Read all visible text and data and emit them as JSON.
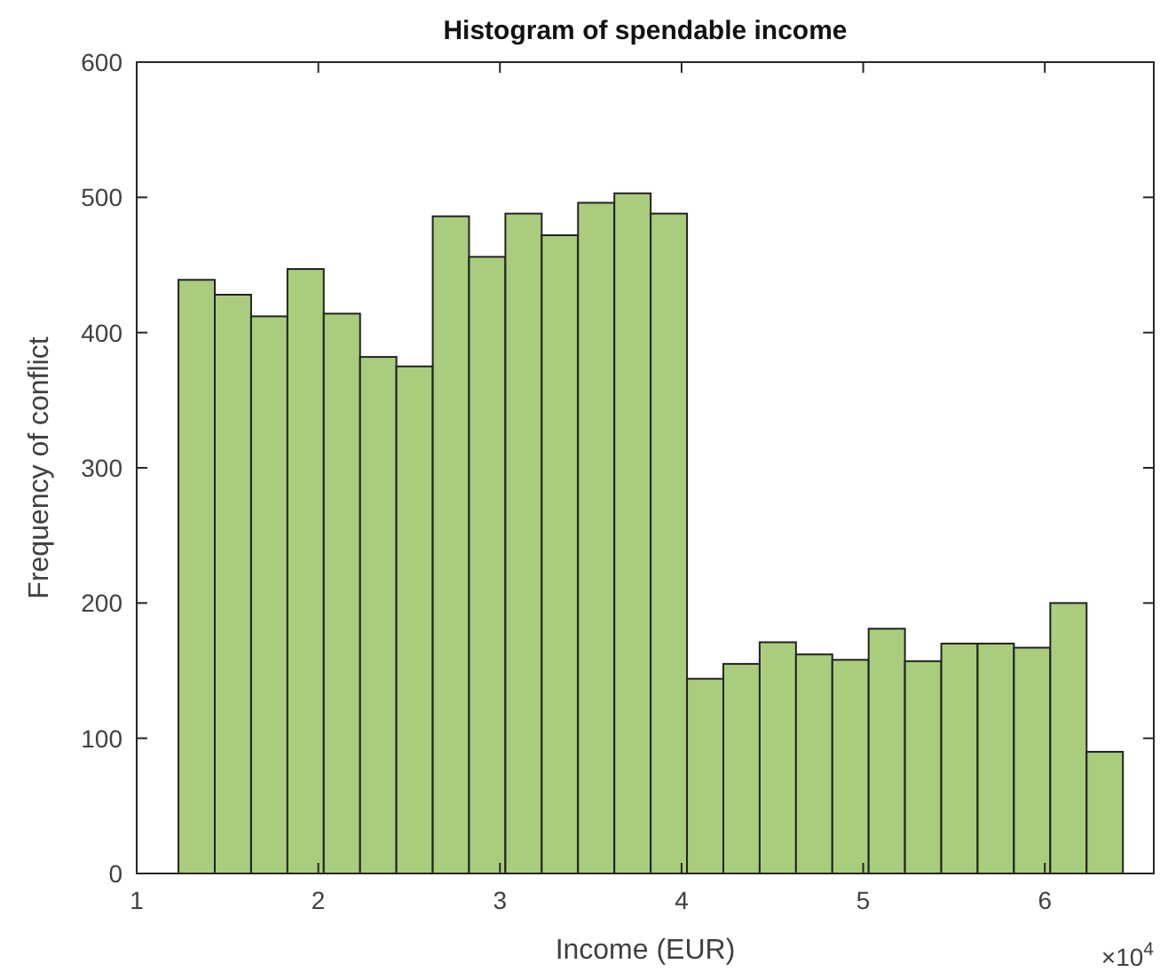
{
  "chart_data": {
    "type": "histogram",
    "title": "Histogram of spendable income",
    "xlabel": "Income (EUR)",
    "ylabel": "Frequency of conflict",
    "bins": [
      1.23,
      1.43,
      1.63,
      1.83,
      2.03,
      2.23,
      2.43,
      2.63,
      2.83,
      3.03,
      3.23,
      3.43,
      3.63,
      3.83,
      4.03,
      4.23,
      4.43,
      4.63,
      4.83,
      5.03,
      5.23,
      5.43,
      5.63,
      5.83,
      6.03,
      6.23,
      6.43
    ],
    "values": [
      439,
      428,
      412,
      447,
      414,
      382,
      375,
      486,
      456,
      488,
      472,
      496,
      503,
      488,
      144,
      155,
      171,
      162,
      158,
      181,
      157,
      170,
      170,
      167,
      200,
      90
    ],
    "color": "#a9cd7c",
    "xlim": [
      1,
      6.6
    ],
    "xticks": [
      1,
      2,
      3,
      4,
      5,
      6
    ],
    "ylim": [
      0,
      600
    ],
    "yticks": [
      0,
      100,
      200,
      300,
      400,
      500,
      600
    ],
    "annotations": [
      "×10$^{4}$"
    ]
  }
}
